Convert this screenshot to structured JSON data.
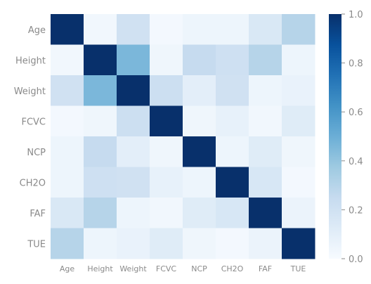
{
  "chart_data": {
    "type": "heatmap",
    "title": "",
    "xlabel": "",
    "ylabel": "",
    "rows": [
      "Age",
      "Height",
      "Weight",
      "FCVC",
      "NCP",
      "CH2O",
      "FAF",
      "TUE"
    ],
    "columns": [
      "Age",
      "Height",
      "Weight",
      "FCVC",
      "NCP",
      "CH2O",
      "FAF",
      "TUE"
    ],
    "values": [
      [
        1.0,
        0.03,
        0.2,
        0.02,
        0.05,
        0.05,
        0.15,
        0.3
      ],
      [
        0.03,
        1.0,
        0.46,
        0.04,
        0.25,
        0.21,
        0.3,
        0.05
      ],
      [
        0.2,
        0.46,
        1.0,
        0.22,
        0.1,
        0.2,
        0.05,
        0.07
      ],
      [
        0.02,
        0.04,
        0.22,
        1.0,
        0.04,
        0.08,
        0.03,
        0.12
      ],
      [
        0.05,
        0.25,
        0.1,
        0.04,
        1.0,
        0.05,
        0.12,
        0.04
      ],
      [
        0.05,
        0.21,
        0.2,
        0.08,
        0.05,
        1.0,
        0.16,
        0.02
      ],
      [
        0.15,
        0.3,
        0.05,
        0.03,
        0.12,
        0.16,
        1.0,
        0.06
      ],
      [
        0.3,
        0.05,
        0.07,
        0.12,
        0.04,
        0.02,
        0.06,
        1.0
      ]
    ],
    "value_range": [
      0.0,
      1.0
    ],
    "colormap": "Blues",
    "colorbar": {
      "ticks": [
        "0.0",
        "0.2",
        "0.4",
        "0.6",
        "0.8",
        "1.0"
      ],
      "position": "right"
    },
    "grid": false
  },
  "colors": {
    "label": "#8a8a8a",
    "low": "#f7fbff",
    "high": "#08306b"
  }
}
